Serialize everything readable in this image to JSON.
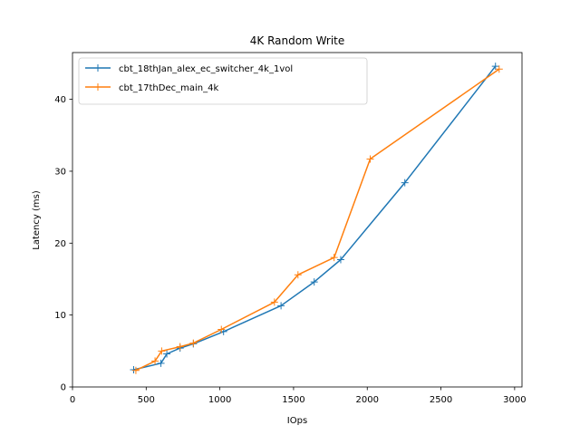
{
  "chart_data": {
    "type": "line",
    "title": "4K  Random Write",
    "xlabel": "IOps",
    "ylabel": "Latency (ms)",
    "xlim": [
      0,
      3050
    ],
    "ylim": [
      0,
      46.5
    ],
    "xticks": [
      0,
      500,
      1000,
      1500,
      2000,
      2500,
      3000
    ],
    "yticks": [
      0,
      10,
      20,
      30,
      40
    ],
    "grid": false,
    "legend_position": "upper-left",
    "marker": "+",
    "series": [
      {
        "name": "cbt_18thJan_alex_ec_switcher_4k_1vol",
        "color": "#1f77b4",
        "x": [
          415,
          600,
          640,
          730,
          820,
          1025,
          1415,
          1640,
          1820,
          2255,
          2870
        ],
        "y": [
          2.4,
          3.3,
          4.6,
          5.4,
          6.0,
          7.7,
          11.3,
          14.6,
          17.7,
          28.4,
          44.6
        ]
      },
      {
        "name": "cbt_17thDec_main_4k",
        "color": "#ff7f0e",
        "x": [
          430,
          560,
          605,
          730,
          820,
          1010,
          1370,
          1530,
          1775,
          2020,
          2895
        ],
        "y": [
          2.3,
          3.6,
          5.0,
          5.6,
          6.1,
          8.0,
          11.8,
          15.6,
          18.0,
          31.7,
          44.2
        ]
      }
    ]
  }
}
